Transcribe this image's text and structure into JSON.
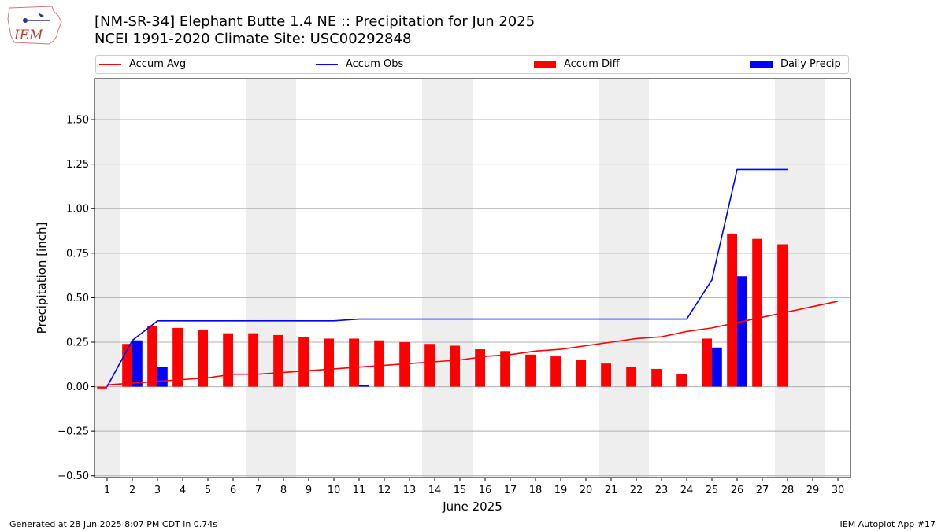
{
  "header": {
    "title_line1": "[NM-SR-34] Elephant Butte 1.4 NE :: Precipitation for Jun 2025",
    "title_line2": "NCEI 1991-2020 Climate Site: USC00292848",
    "logo_text": "IEM"
  },
  "footer": {
    "left": "Generated at 28 Jun 2025 8:07 PM CDT in 0.74s",
    "right": "IEM Autoplot App #17"
  },
  "colors": {
    "avg": "#ff0000",
    "obs": "#0000ff",
    "diff": "#ff0000",
    "daily": "#0000ff",
    "weekend_band": "#eeeeee",
    "grid": "#b0b0b0"
  },
  "chart_data": {
    "type": "bar",
    "xlabel": "June 2025",
    "ylabel": "Precipitation [inch]",
    "xlim": [
      0.5,
      30.5
    ],
    "ylim": [
      -0.51,
      1.73
    ],
    "yticks": [
      -0.5,
      -0.25,
      0.0,
      0.25,
      0.5,
      0.75,
      1.0,
      1.25,
      1.5
    ],
    "ytick_labels": [
      "−0.50",
      "−0.25",
      "0.00",
      "0.25",
      "0.50",
      "0.75",
      "1.00",
      "1.25",
      "1.50"
    ],
    "grid": "horizontal",
    "legend_position": "top",
    "weekend_bands": [
      [
        0.5,
        1.5
      ],
      [
        6.5,
        8.5
      ],
      [
        13.5,
        15.5
      ],
      [
        20.5,
        22.5
      ],
      [
        27.5,
        29.5
      ]
    ],
    "days": [
      1,
      2,
      3,
      4,
      5,
      6,
      7,
      8,
      9,
      10,
      11,
      12,
      13,
      14,
      15,
      16,
      17,
      18,
      19,
      20,
      21,
      22,
      23,
      24,
      25,
      26,
      27,
      28,
      29,
      30
    ],
    "series": [
      {
        "name": "Accum Avg",
        "kind": "line",
        "x": [
          1,
          2,
          3,
          4,
          5,
          6,
          7,
          8,
          9,
          10,
          11,
          12,
          13,
          14,
          15,
          16,
          17,
          18,
          19,
          20,
          21,
          22,
          23,
          24,
          25,
          26,
          27,
          28,
          29,
          30
        ],
        "values": [
          0.01,
          0.02,
          0.03,
          0.04,
          0.05,
          0.07,
          0.07,
          0.08,
          0.09,
          0.1,
          0.11,
          0.12,
          0.13,
          0.14,
          0.15,
          0.17,
          0.18,
          0.2,
          0.21,
          0.23,
          0.25,
          0.27,
          0.28,
          0.31,
          0.33,
          0.36,
          0.39,
          0.42,
          0.45,
          0.48
        ]
      },
      {
        "name": "Accum Obs",
        "kind": "line",
        "x": [
          1,
          2,
          3,
          4,
          5,
          6,
          7,
          8,
          9,
          10,
          11,
          12,
          13,
          14,
          15,
          16,
          17,
          18,
          19,
          20,
          21,
          22,
          23,
          24,
          25,
          26,
          27,
          28
        ],
        "values": [
          0.0,
          0.26,
          0.37,
          0.37,
          0.37,
          0.37,
          0.37,
          0.37,
          0.37,
          0.37,
          0.38,
          0.38,
          0.38,
          0.38,
          0.38,
          0.38,
          0.38,
          0.38,
          0.38,
          0.38,
          0.38,
          0.38,
          0.38,
          0.38,
          0.6,
          1.22,
          1.22,
          1.22
        ]
      },
      {
        "name": "Accum Diff",
        "kind": "bar",
        "x": [
          1,
          2,
          3,
          4,
          5,
          6,
          7,
          8,
          9,
          10,
          11,
          12,
          13,
          14,
          15,
          16,
          17,
          18,
          19,
          20,
          21,
          22,
          23,
          24,
          25,
          26,
          27,
          28
        ],
        "values": [
          -0.01,
          0.24,
          0.34,
          0.33,
          0.32,
          0.3,
          0.3,
          0.29,
          0.28,
          0.27,
          0.27,
          0.26,
          0.25,
          0.24,
          0.23,
          0.21,
          0.2,
          0.18,
          0.17,
          0.15,
          0.13,
          0.11,
          0.1,
          0.07,
          0.27,
          0.86,
          0.83,
          0.8
        ]
      },
      {
        "name": "Daily Precip",
        "kind": "bar",
        "x": [
          1,
          2,
          3,
          4,
          5,
          6,
          7,
          8,
          9,
          10,
          11,
          12,
          13,
          14,
          15,
          16,
          17,
          18,
          19,
          20,
          21,
          22,
          23,
          24,
          25,
          26,
          27,
          28
        ],
        "values": [
          0,
          0.26,
          0.11,
          0,
          0,
          0,
          0,
          0,
          0,
          0,
          0.01,
          0,
          0,
          0,
          0,
          0,
          0,
          0,
          0,
          0,
          0,
          0,
          0,
          0,
          0.22,
          0.62,
          0,
          0
        ]
      }
    ]
  }
}
